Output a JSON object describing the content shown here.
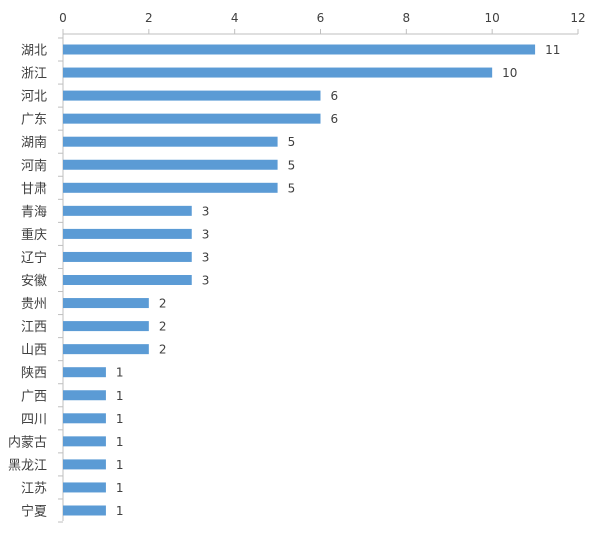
{
  "chart_data": {
    "type": "bar",
    "orientation": "horizontal",
    "categories": [
      "湖北",
      "浙江",
      "河北",
      "广东",
      "湖南",
      "河南",
      "甘肃",
      "青海",
      "重庆",
      "辽宁",
      "安徽",
      "贵州",
      "江西",
      "山西",
      "陕西",
      "广西",
      "四川",
      "内蒙古",
      "黑龙江",
      "江苏",
      "宁夏"
    ],
    "values": [
      11,
      10,
      6,
      6,
      5,
      5,
      5,
      3,
      3,
      3,
      3,
      2,
      2,
      2,
      1,
      1,
      1,
      1,
      1,
      1,
      1
    ],
    "xlim": [
      0,
      12
    ],
    "xticks": [
      0,
      2,
      4,
      6,
      8,
      10,
      12
    ],
    "xaxis_position": "top",
    "grid": false,
    "data_labels": true,
    "legend": "none",
    "bar_color": "#5b9bd5",
    "title": "",
    "xlabel": "",
    "ylabel": ""
  }
}
